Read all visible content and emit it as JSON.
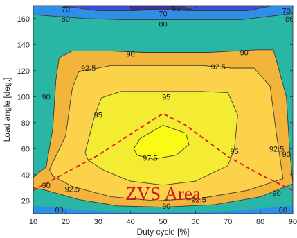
{
  "chart_data": {
    "type": "heatmap",
    "subtype": "filled-contour",
    "title": "",
    "xlabel": "Duty cycle [%]",
    "ylabel": "Load angle [deg.]",
    "xlim": [
      10,
      90
    ],
    "ylim": [
      10,
      170
    ],
    "xticks": [
      10,
      20,
      30,
      40,
      50,
      60,
      70,
      80,
      90
    ],
    "yticks": [
      20,
      40,
      60,
      80,
      100,
      120,
      140,
      160
    ],
    "grid": false,
    "levels": [
      60,
      70,
      80,
      90,
      92.5,
      95,
      97.5
    ],
    "level_colors": {
      "below_60": "#4030a8",
      "60_70": "#3a4fd6",
      "70_80": "#2f8ee6",
      "80_90": "#29b6a5",
      "90_92.5": "#f2b43a",
      "92.5_95": "#fbd24a",
      "95_97.5": "#f3ec32",
      "above_97.5": "#f9fb14"
    },
    "contours": [
      {
        "level": 60,
        "points": [
          [
            36,
            170
          ],
          [
            55,
            170
          ],
          [
            59,
            167
          ],
          [
            40,
            167
          ]
        ]
      },
      {
        "level": 70,
        "points": [
          [
            18,
            170
          ],
          [
            30,
            166
          ],
          [
            41,
            166
          ],
          [
            50,
            167
          ],
          [
            58,
            166
          ],
          [
            66,
            166
          ],
          [
            76,
            166
          ],
          [
            84,
            170
          ]
        ]
      },
      {
        "level": 80,
        "points": [
          [
            10,
            163
          ],
          [
            26,
            160
          ],
          [
            38,
            159
          ],
          [
            50,
            159
          ],
          [
            62,
            159
          ],
          [
            74,
            159
          ],
          [
            90,
            164
          ]
        ]
      },
      {
        "level": 90,
        "points": [
          [
            10,
            38
          ],
          [
            14,
            46
          ],
          [
            16,
            75
          ],
          [
            17,
            113
          ],
          [
            18,
            130
          ],
          [
            22,
            135
          ],
          [
            34,
            135
          ],
          [
            44,
            134
          ],
          [
            54,
            134
          ],
          [
            64,
            134
          ],
          [
            72,
            135
          ],
          [
            79,
            136
          ],
          [
            84,
            136
          ],
          [
            88,
            100
          ],
          [
            89,
            60
          ],
          [
            90,
            33
          ],
          [
            80,
            23
          ],
          [
            66,
            17
          ],
          [
            50,
            15
          ],
          [
            36,
            16
          ],
          [
            24,
            21
          ],
          [
            14,
            28
          ],
          [
            10,
            30
          ]
        ]
      },
      {
        "level": 92.5,
        "points": [
          [
            15,
            44
          ],
          [
            20,
            70
          ],
          [
            22,
            106
          ],
          [
            24,
            119
          ],
          [
            34,
            124
          ],
          [
            50,
            124
          ],
          [
            62,
            124
          ],
          [
            71,
            122
          ],
          [
            78,
            122
          ],
          [
            83,
            108
          ],
          [
            85,
            70
          ],
          [
            87,
            37
          ],
          [
            76,
            28
          ],
          [
            62,
            22
          ],
          [
            48,
            20
          ],
          [
            34,
            23
          ],
          [
            22,
            31
          ],
          [
            16,
            39
          ]
        ]
      },
      {
        "level": 95,
        "points": [
          [
            26,
            57
          ],
          [
            29,
            86
          ],
          [
            31,
            99
          ],
          [
            37,
            104
          ],
          [
            50,
            104
          ],
          [
            62,
            104
          ],
          [
            70,
            103
          ],
          [
            73,
            86
          ],
          [
            72,
            60
          ],
          [
            70,
            47
          ],
          [
            60,
            35
          ],
          [
            50,
            32
          ],
          [
            40,
            35
          ],
          [
            32,
            43
          ],
          [
            27,
            51
          ]
        ]
      },
      {
        "level": 97.5,
        "points": [
          [
            41,
            60
          ],
          [
            43,
            68
          ],
          [
            50,
            78
          ],
          [
            57,
            72
          ],
          [
            58,
            63
          ],
          [
            54,
            55
          ],
          [
            47,
            52
          ],
          [
            42,
            55
          ]
        ]
      }
    ],
    "contour_labels": [
      {
        "text": "70",
        "x": 20,
        "y": 167
      },
      {
        "text": "70",
        "x": 50,
        "y": 164
      },
      {
        "text": "60",
        "x": 54,
        "y": 168
      },
      {
        "text": "70",
        "x": 88,
        "y": 166
      },
      {
        "text": "80",
        "x": 20,
        "y": 160
      },
      {
        "text": "80",
        "x": 50,
        "y": 156
      },
      {
        "text": "80",
        "x": 89,
        "y": 160
      },
      {
        "text": "90",
        "x": 40,
        "y": 133
      },
      {
        "text": "90",
        "x": 75,
        "y": 134
      },
      {
        "text": "92.5",
        "x": 27,
        "y": 122
      },
      {
        "text": "92.5",
        "x": 67,
        "y": 123
      },
      {
        "text": "90",
        "x": 14,
        "y": 100
      },
      {
        "text": "95",
        "x": 51,
        "y": 100
      },
      {
        "text": "95",
        "x": 30,
        "y": 86
      },
      {
        "text": "97.5",
        "x": 46,
        "y": 53
      },
      {
        "text": "95",
        "x": 72,
        "y": 58
      },
      {
        "text": "92.5",
        "x": 85,
        "y": 60
      },
      {
        "text": "90",
        "x": 88,
        "y": 56
      },
      {
        "text": "90",
        "x": 14,
        "y": 32
      },
      {
        "text": "92.5",
        "x": 22,
        "y": 29
      },
      {
        "text": "92.5",
        "x": 61,
        "y": 21
      },
      {
        "text": "90",
        "x": 85,
        "y": 26
      },
      {
        "text": "90",
        "x": 51,
        "y": 16
      },
      {
        "text": "80",
        "x": 18,
        "y": 13
      },
      {
        "text": "80",
        "x": 87,
        "y": 13
      }
    ],
    "boundary_line": {
      "style": "dashed",
      "color": "#e0141e",
      "points": [
        [
          10,
          28
        ],
        [
          30,
          55
        ],
        [
          43,
          76
        ],
        [
          50,
          87
        ],
        [
          57,
          78
        ],
        [
          70,
          54
        ],
        [
          80,
          40
        ],
        [
          90,
          28
        ]
      ]
    },
    "annotation": {
      "text": "ZVS Area",
      "x": 50,
      "y": 25,
      "color": "#c8141e"
    }
  }
}
